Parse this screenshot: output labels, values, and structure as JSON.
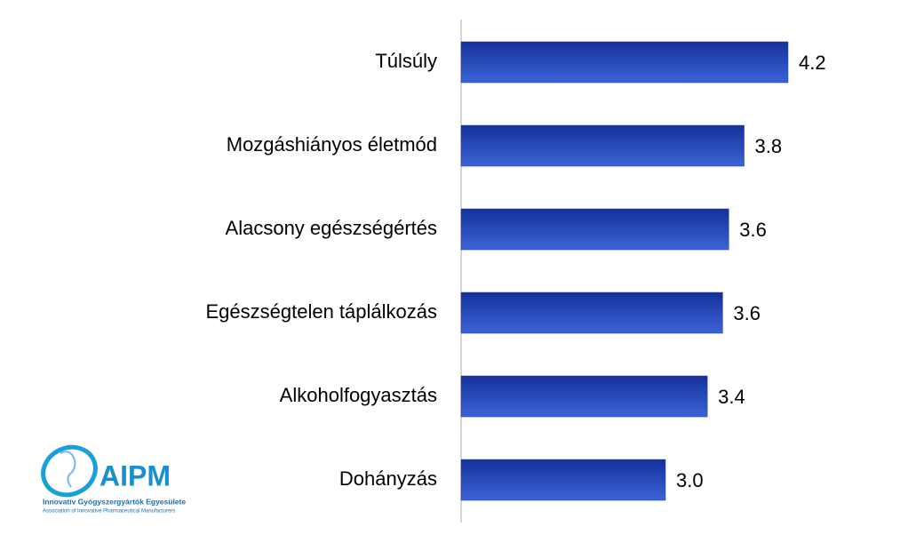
{
  "chart_data": {
    "type": "barh",
    "categories": [
      "Túlsúly",
      "Mozgáshiányos életmód",
      "Alacsony egészségértés",
      "Egészségtelen táplálkozás",
      "Alkoholfogyasztás",
      "Dohányzás"
    ],
    "values": [
      4.2,
      3.77,
      3.62,
      3.56,
      3.41,
      3.0
    ],
    "value_labels": [
      "4.2",
      "3.8",
      "3.6",
      "3.6",
      "3.4",
      "3.0"
    ],
    "color": "#1f3fb0",
    "xlim": [
      1,
      4.9
    ]
  },
  "logo": {
    "name": "AIPM",
    "line1": "Innovatív Gyógyszergyártók Egyesülete",
    "line2": "Association of Innovative Pharmaceutical Manufacturers"
  }
}
